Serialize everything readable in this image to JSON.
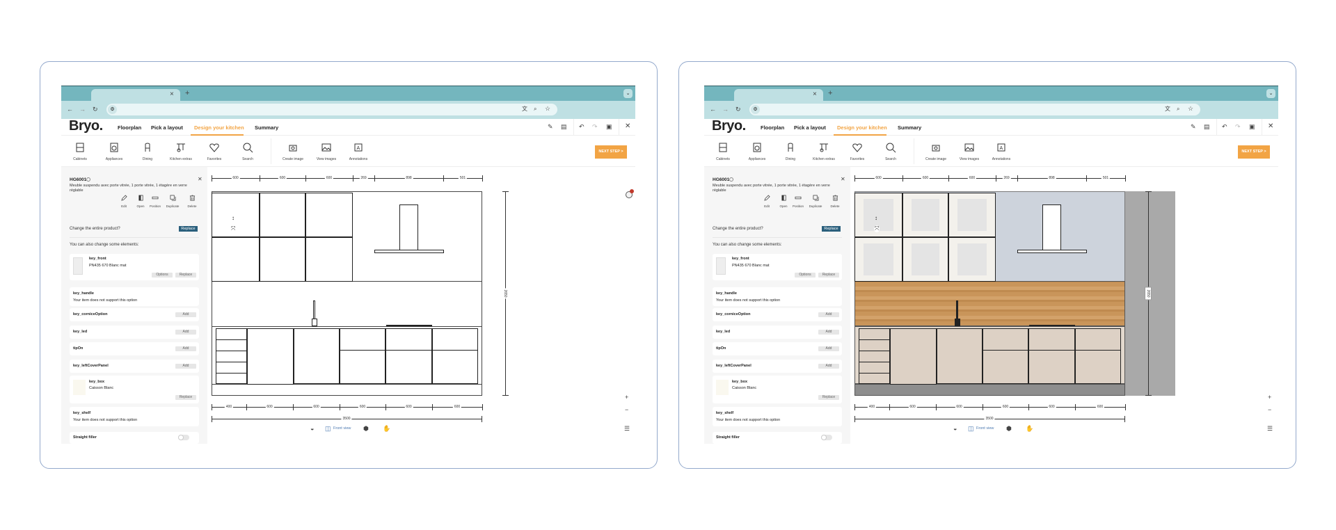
{
  "browser": {
    "new_tab": "+",
    "close_tab": "×"
  },
  "app": {
    "logo": "Bryo.",
    "nav": [
      "Floorplan",
      "Pick a layout",
      "Design your kitchen",
      "Summary"
    ],
    "active_nav": "Design your kitchen",
    "next_step": "NEXT STEP >"
  },
  "toolbar": {
    "catalog": [
      {
        "label": "Cabinets",
        "icon": "cabinet-icon"
      },
      {
        "label": "Appliances",
        "icon": "washing-machine-icon"
      },
      {
        "label": "Dining",
        "icon": "chair-icon"
      },
      {
        "label": "Kitchen extras",
        "icon": "utensils-rail-icon"
      },
      {
        "label": "Favorites",
        "icon": "heart-icon"
      },
      {
        "label": "Search",
        "icon": "search-icon"
      }
    ],
    "tools": [
      {
        "label": "Create image",
        "icon": "camera-icon"
      },
      {
        "label": "View images",
        "icon": "image-icon"
      },
      {
        "label": "Annotations",
        "icon": "annotation-icon"
      }
    ]
  },
  "panel": {
    "code": "HG6001",
    "description": "Meuble suspendu avec porte vitrée, 1 porte vitrée, 1 étagère en verre réglable",
    "actions": [
      "Edit",
      "Open",
      "Position",
      "Duplicate",
      "Delete"
    ],
    "change_product": "Change the entire product?",
    "replace": "Replace",
    "elements_heading": "You can also change some elements:",
    "key_front": {
      "title": "key_front",
      "value": "PN435 670 Blanc mat",
      "options": "Options",
      "replace": "Replace"
    },
    "key_handle": {
      "title": "key_handle",
      "note": "Your item does not support this option"
    },
    "add_rows": [
      {
        "title": "key_corniceOption",
        "button": "Add"
      },
      {
        "title": "key_led",
        "button": "Add"
      },
      {
        "title": "tipOn",
        "button": "Add"
      },
      {
        "title": "key_leftCoverPanel",
        "button": "Add"
      }
    ],
    "key_box": {
      "title": "key_box",
      "value": "Caisson Blanc",
      "replace": "Replace"
    },
    "key_shelf": {
      "title": "key_shelf",
      "note": "Your item does not support this option"
    },
    "straight_filler": {
      "title": "Straight filler",
      "enabled": false
    }
  },
  "drawing": {
    "top_dims": [
      "600",
      "600",
      "600",
      "269",
      "898",
      "501"
    ],
    "bottom_dims": [
      "400",
      "600",
      "600",
      "600",
      "600",
      "600"
    ],
    "total_width": "3500",
    "height": "2650"
  },
  "view_bar": {
    "label": "Front view"
  },
  "zoom": {
    "in": "+",
    "out": "−"
  },
  "colors": {
    "tab_bar": "#74b6be",
    "address_bar": "#bfe0e3",
    "accent": "#f2a444",
    "replace_button": "#2a5f7c",
    "wall": "#cdd3dc",
    "backsplash_wood": "#c9955a",
    "base_fronts": "#ddd1c5",
    "plinth": "#8e8e8e"
  }
}
